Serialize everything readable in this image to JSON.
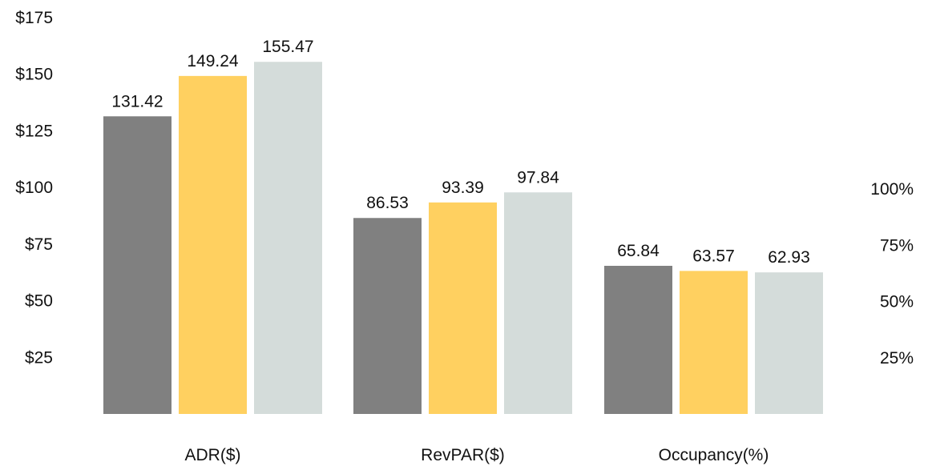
{
  "chart_data": {
    "type": "bar",
    "categories": [
      "ADR($)",
      "RevPAR($)",
      "Occupancy(%)"
    ],
    "series": [
      {
        "values": [
          131.42,
          86.53,
          65.84
        ],
        "color": "#808080"
      },
      {
        "values": [
          149.24,
          93.39,
          63.57
        ],
        "color": "#FFD060"
      },
      {
        "values": [
          155.47,
          97.84,
          62.93
        ],
        "color": "#D4DCDA"
      }
    ],
    "left_axis": {
      "ticks": [
        25,
        50,
        75,
        100,
        125,
        150,
        175
      ],
      "tick_labels": [
        "$25",
        "$50",
        "$75",
        "$100",
        "$125",
        "$150",
        "$175"
      ],
      "ylim": [
        0,
        175
      ],
      "applies_to": [
        "ADR($)",
        "RevPAR($)"
      ]
    },
    "right_axis": {
      "ticks": [
        25,
        50,
        75,
        100
      ],
      "tick_labels": [
        "25%",
        "50%",
        "75%",
        "100%"
      ],
      "ylim": [
        0,
        100
      ],
      "applies_to": [
        "Occupancy(%)"
      ]
    },
    "title": "",
    "xlabel": "",
    "ylabel": "",
    "grid": false,
    "legend": "none"
  }
}
